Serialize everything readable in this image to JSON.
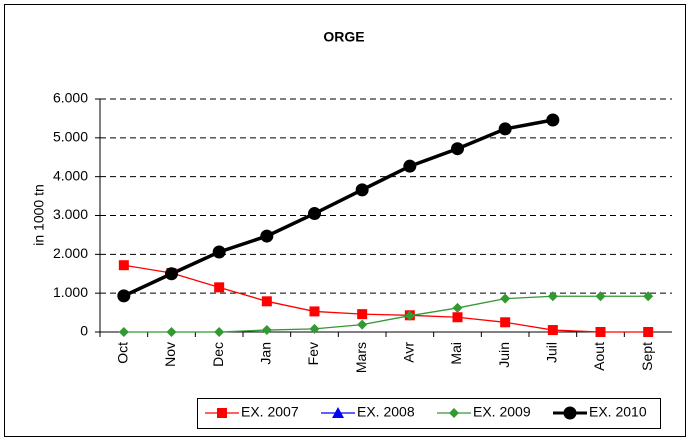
{
  "chart_data": {
    "type": "line",
    "title": "ORGE",
    "y_label": "in 1000 tn",
    "categories": [
      "Oct",
      "Nov",
      "Dec",
      "Jan",
      "Fev",
      "Mars",
      "Avr",
      "Mai",
      "Juin",
      "Juil",
      "Aout",
      "Sept"
    ],
    "series": [
      {
        "name": "EX. 2007",
        "color": "#ff0000",
        "marker": "square",
        "values": [
          1720,
          1520,
          1150,
          790,
          530,
          460,
          430,
          380,
          250,
          50,
          0,
          0
        ]
      },
      {
        "name": "EX. 2008",
        "color": "#0000ff",
        "marker": "triangle",
        "values": [
          null,
          null,
          null,
          null,
          null,
          null,
          null,
          null,
          null,
          null,
          null,
          null
        ]
      },
      {
        "name": "EX. 2009",
        "color": "#339933",
        "marker": "diamond",
        "values": [
          0,
          0,
          0,
          50,
          80,
          190,
          420,
          620,
          860,
          920,
          920,
          920
        ]
      },
      {
        "name": "EX. 2010",
        "color": "#000000",
        "marker": "circle",
        "values": [
          930,
          1500,
          2060,
          2470,
          3050,
          3660,
          4270,
          4720,
          5230,
          5460,
          null,
          null
        ]
      }
    ],
    "ylim": [
      0,
      6000
    ],
    "yticks": [
      0,
      {
        "value": 1000,
        "label": "1.000"
      },
      {
        "value": 2000,
        "label": "2.000"
      },
      {
        "value": 3000,
        "label": "3.000"
      },
      {
        "value": 4000,
        "label": "4.000"
      },
      {
        "value": 5000,
        "label": "5.000"
      },
      {
        "value": 6000,
        "label": "6.000"
      }
    ],
    "grid": true
  }
}
